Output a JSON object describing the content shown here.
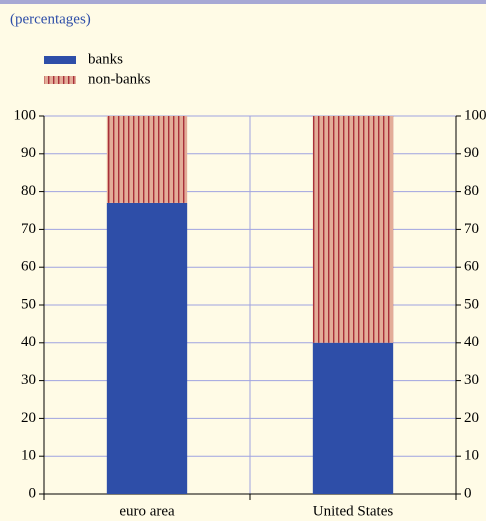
{
  "chart_data": {
    "type": "stacked_bar",
    "subtitle": "(percentages)",
    "categories": [
      "euro area",
      "United States"
    ],
    "series": [
      {
        "name": "banks",
        "color": "#2e4ea8",
        "values": [
          77,
          40
        ]
      },
      {
        "name": "non-banks",
        "color": "#e3ac98",
        "hatched": true,
        "values": [
          23,
          60
        ]
      }
    ],
    "ylim": [
      0,
      100
    ],
    "yticks": [
      0,
      10,
      20,
      30,
      40,
      50,
      60,
      70,
      80,
      90,
      100
    ],
    "grid": true,
    "right_axis": true
  }
}
